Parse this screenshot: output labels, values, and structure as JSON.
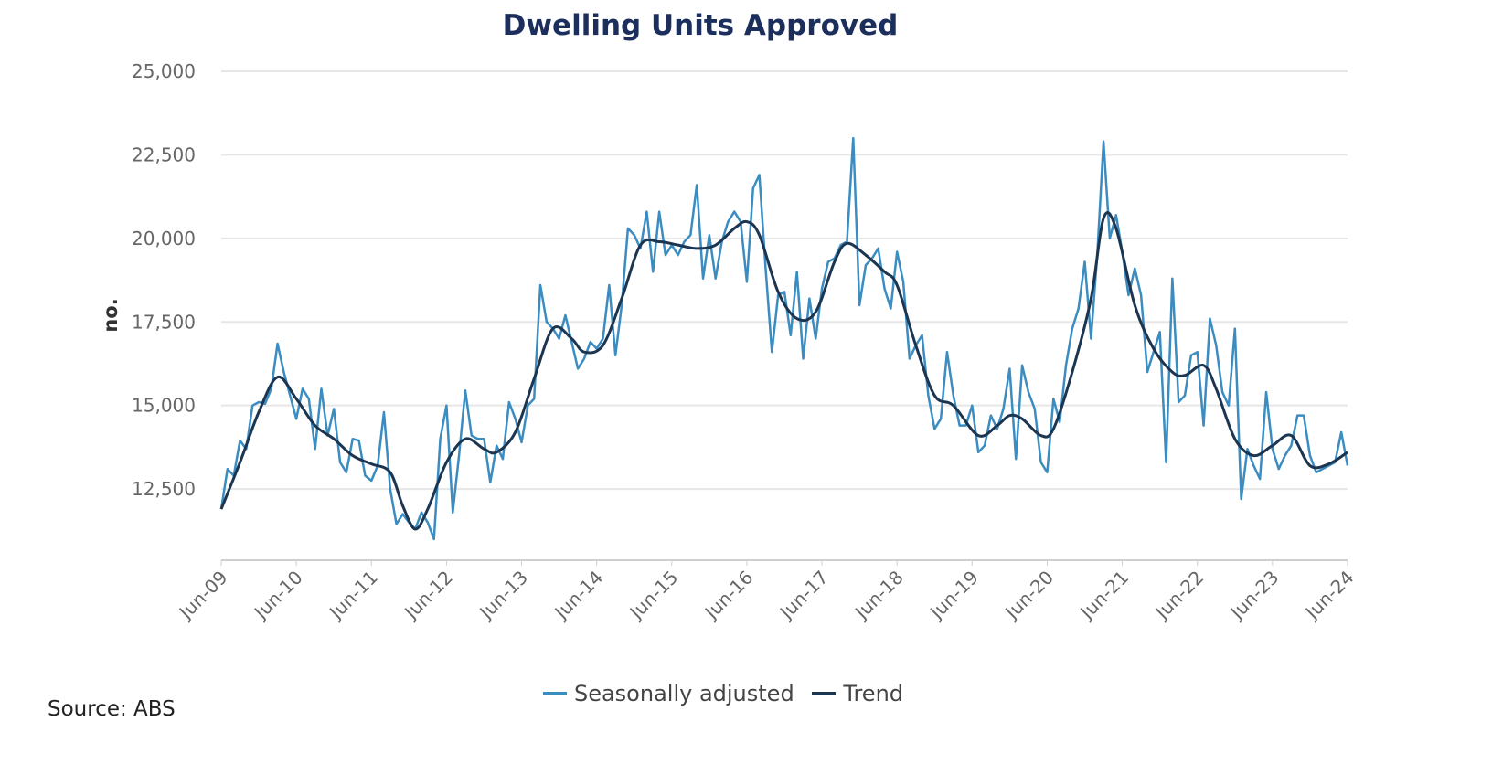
{
  "chart_data": {
    "type": "line",
    "title": "Dwelling Units Approved",
    "xlabel": "",
    "ylabel": "no.",
    "ylim": [
      10370,
      25000
    ],
    "yticks": [
      12500,
      15000,
      17500,
      20000,
      22500,
      25000
    ],
    "ytick_labels": [
      "12,500",
      "15,000",
      "17,500",
      "20,000",
      "22,500",
      "25,000"
    ],
    "x_start": "Jun-09",
    "x_frequency": "monthly",
    "xtick_labels": [
      "Jun-09",
      "Jun-10",
      "Jun-11",
      "Jun-12",
      "Jun-13",
      "Jun-14",
      "Jun-15",
      "Jun-16",
      "Jun-17",
      "Jun-18",
      "Jun-19",
      "Jun-20",
      "Jun-21",
      "Jun-22",
      "Jun-23",
      "Jun-24"
    ],
    "grid": true,
    "legend_position": "bottom-center",
    "colors": {
      "seasonally_adjusted": "#3b8cc0",
      "trend": "#1c3551",
      "title": "#1b2e5c"
    },
    "series": [
      {
        "name": "Seasonally adjusted",
        "month_index_step": 1,
        "values": [
          11900,
          13100,
          12900,
          13950,
          13700,
          15000,
          15100,
          15050,
          15500,
          16850,
          16000,
          15300,
          14600,
          15500,
          15200,
          13700,
          15500,
          14100,
          14900,
          13300,
          13000,
          14000,
          13950,
          12900,
          12750,
          13200,
          14800,
          12500,
          11450,
          11750,
          11500,
          11300,
          11800,
          11500,
          11000,
          14000,
          15000,
          11800,
          13500,
          15450,
          14100,
          14000,
          14000,
          12700,
          13800,
          13400,
          15100,
          14600,
          13900,
          15000,
          15200,
          18600,
          17500,
          17300,
          17000,
          17700,
          16900,
          16100,
          16400,
          16900,
          16700,
          17000,
          18600,
          16500,
          18000,
          20300,
          20100,
          19700,
          20800,
          19000,
          20800,
          19500,
          19800,
          19500,
          19900,
          20100,
          21600,
          18800,
          20100,
          18800,
          19900,
          20500,
          20800,
          20500,
          18700,
          21500,
          21900,
          19100,
          16600,
          18300,
          18400,
          17100,
          19000,
          16400,
          18200,
          17000,
          18500,
          19300,
          19400,
          19800,
          19900,
          23000,
          18000,
          19200,
          19400,
          19700,
          18500,
          17900,
          19600,
          18700,
          16400,
          16800,
          17100,
          15300,
          14300,
          14600,
          16600,
          15300,
          14400,
          14400,
          15000,
          13600,
          13800,
          14700,
          14300,
          14900,
          16100,
          13400,
          16200,
          15400,
          14900,
          13300,
          13000,
          15200,
          14500,
          16200,
          17300,
          17900,
          19300,
          17000,
          19500,
          22900,
          20000,
          20700,
          19600,
          18300,
          19100,
          18300,
          16000,
          16600,
          17200,
          13300,
          18800,
          15100,
          15300,
          16500,
          16600,
          14400,
          17600,
          16800,
          15400,
          15000,
          17300,
          12200,
          13700,
          13200,
          12800,
          15400,
          13700,
          13100,
          13500,
          13800,
          14700,
          14700,
          13500,
          13000,
          13100,
          13200,
          13300,
          14200,
          13200
        ]
      },
      {
        "name": "Trend",
        "points_month_value": [
          [
            0,
            11900
          ],
          [
            3,
            13300
          ],
          [
            6,
            14800
          ],
          [
            9,
            15850
          ],
          [
            12,
            15200
          ],
          [
            15,
            14400
          ],
          [
            18,
            14000
          ],
          [
            21,
            13500
          ],
          [
            24,
            13250
          ],
          [
            27,
            13000
          ],
          [
            29,
            12000
          ],
          [
            31,
            11300
          ],
          [
            33,
            11900
          ],
          [
            36,
            13300
          ],
          [
            39,
            14000
          ],
          [
            42,
            13700
          ],
          [
            44,
            13600
          ],
          [
            47,
            14200
          ],
          [
            50,
            15800
          ],
          [
            53,
            17300
          ],
          [
            56,
            17000
          ],
          [
            58,
            16600
          ],
          [
            61,
            16800
          ],
          [
            64,
            18200
          ],
          [
            67,
            19800
          ],
          [
            70,
            19900
          ],
          [
            73,
            19800
          ],
          [
            76,
            19700
          ],
          [
            79,
            19800
          ],
          [
            82,
            20300
          ],
          [
            84,
            20500
          ],
          [
            86,
            20100
          ],
          [
            89,
            18400
          ],
          [
            92,
            17600
          ],
          [
            95,
            17800
          ],
          [
            98,
            19300
          ],
          [
            100,
            19850
          ],
          [
            103,
            19500
          ],
          [
            106,
            19000
          ],
          [
            108,
            18600
          ],
          [
            111,
            16800
          ],
          [
            114,
            15300
          ],
          [
            117,
            15000
          ],
          [
            121,
            14100
          ],
          [
            124,
            14400
          ],
          [
            126,
            14700
          ],
          [
            128,
            14600
          ],
          [
            131,
            14100
          ],
          [
            133,
            14300
          ],
          [
            136,
            16000
          ],
          [
            139,
            18200
          ],
          [
            141,
            20600
          ],
          [
            143,
            20300
          ],
          [
            146,
            18000
          ],
          [
            149,
            16700
          ],
          [
            152,
            16000
          ],
          [
            154,
            15900
          ],
          [
            157,
            16200
          ],
          [
            159,
            15500
          ],
          [
            162,
            14000
          ],
          [
            165,
            13500
          ],
          [
            168,
            13800
          ],
          [
            171,
            14100
          ],
          [
            174,
            13200
          ],
          [
            177,
            13250
          ],
          [
            180,
            13600
          ]
        ]
      }
    ]
  },
  "source": "Source: ABS"
}
